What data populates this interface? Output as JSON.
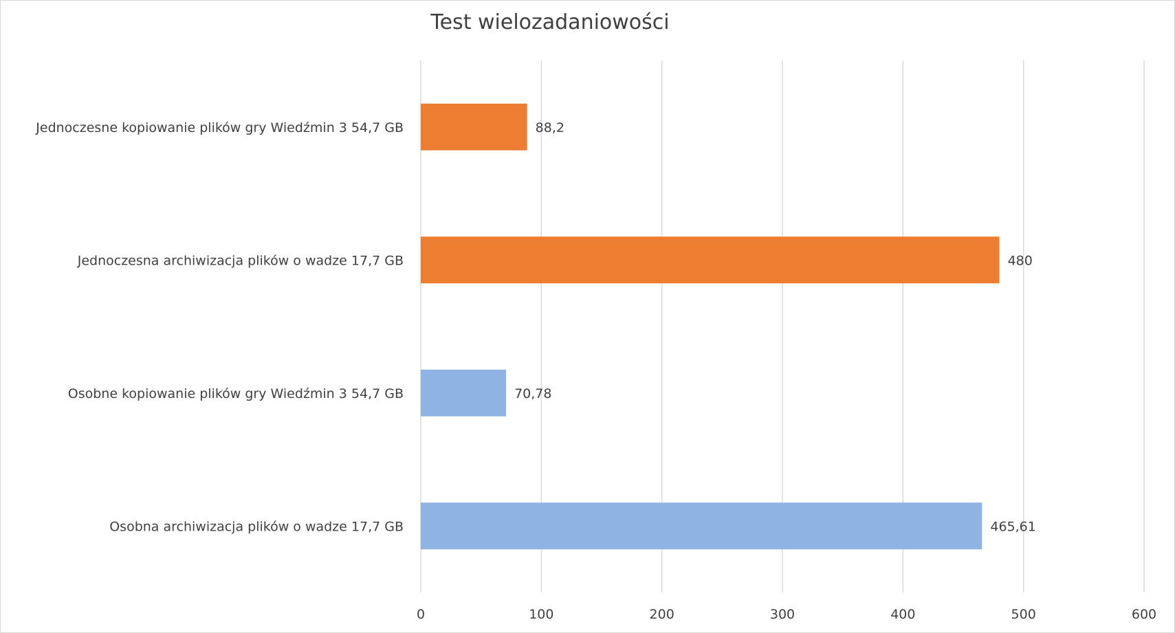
{
  "chart_data": {
    "type": "bar",
    "orientation": "horizontal",
    "title": "Test wielozadaniowości",
    "categories": [
      "Jednoczesne kopiowanie plików gry Wiedźmin 3 54,7 GB",
      "Jednoczesna archiwizacja plików o wadze 17,7 GB",
      "Osobne kopiowanie plików gry Wiedźmin 3 54,7 GB",
      "Osobna archiwizacja plików o wadze 17,7 GB"
    ],
    "values": [
      88.2,
      480,
      70.78,
      465.61
    ],
    "value_labels": [
      "88,2",
      "480",
      "70,78",
      "465,61"
    ],
    "bar_colors": [
      "#ED7D31",
      "#ED7D31",
      "#8FB4E3",
      "#8FB4E3"
    ],
    "xlim": [
      0,
      600
    ],
    "x_ticks": [
      0,
      100,
      200,
      300,
      400,
      500,
      600
    ],
    "x_tick_labels": [
      "0",
      "100",
      "200",
      "300",
      "400",
      "500",
      "600"
    ],
    "grid": true,
    "xlabel": "",
    "ylabel": ""
  }
}
